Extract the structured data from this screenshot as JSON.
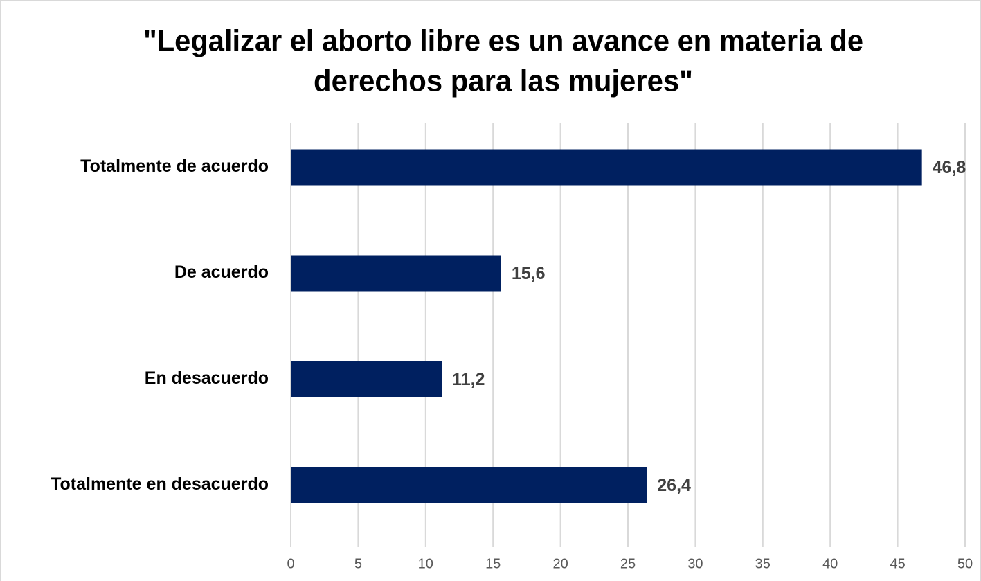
{
  "chart_data": {
    "type": "bar",
    "orientation": "horizontal",
    "title": [
      "\"Legalizar el aborto libre es un avance en materia de",
      "derechos para las mujeres\""
    ],
    "categories": [
      "Totalmente de acuerdo",
      "De acuerdo",
      "En desacuerdo",
      "Totalmente en desacuerdo"
    ],
    "values": [
      46.8,
      15.6,
      11.2,
      26.4
    ],
    "value_labels": [
      "46,8",
      "15,6",
      "11,2",
      "26,4"
    ],
    "color": "#002060",
    "xlim": [
      0,
      50
    ],
    "xticks": [
      0,
      5,
      10,
      15,
      20,
      25,
      30,
      35,
      40,
      45,
      50
    ],
    "grid": true
  }
}
